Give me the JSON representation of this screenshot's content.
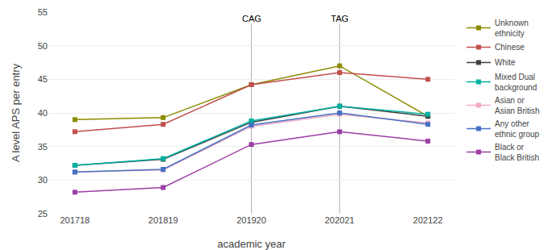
{
  "chart_data": {
    "type": "line",
    "xlabel": "academic year",
    "ylabel": "A level APS per entry",
    "categories": [
      "201718",
      "201819",
      "201920",
      "202021",
      "202122"
    ],
    "series": [
      {
        "name": "Unknown\nethnicity",
        "color": "#8b8b00",
        "marker": "square",
        "values": [
          39.0,
          39.3,
          44.2,
          47.0,
          39.5
        ]
      },
      {
        "name": "Chinese",
        "color": "#c0504d",
        "marker": "square",
        "values": [
          37.2,
          38.3,
          44.2,
          46.0,
          45.0
        ]
      },
      {
        "name": "White",
        "color": "#404040",
        "marker": "square",
        "values": [
          32.2,
          33.1,
          38.6,
          41.0,
          39.5
        ]
      },
      {
        "name": "Mixed Dual\nbackground",
        "color": "#00b0a0",
        "marker": "square",
        "values": [
          32.2,
          33.2,
          38.8,
          41.0,
          39.8
        ]
      },
      {
        "name": "Asian or\nAsian British",
        "color": "#f4a9c4",
        "marker": "square",
        "values": [
          31.2,
          31.5,
          38.0,
          39.8,
          38.5
        ]
      },
      {
        "name": "Any other\nethnic group",
        "color": "#4472c4",
        "marker": "square",
        "values": [
          31.2,
          31.6,
          38.2,
          40.0,
          38.3
        ]
      },
      {
        "name": "Black or\nBlack British",
        "color": "#9b3fa5",
        "marker": "square",
        "values": [
          28.2,
          28.9,
          35.3,
          37.2,
          35.8
        ]
      }
    ],
    "annotations": [
      {
        "text": "CAG",
        "x": "201920"
      },
      {
        "text": "TAG",
        "x": "202021"
      }
    ],
    "ylim": [
      25,
      55
    ],
    "yticks": [
      25,
      30,
      35,
      40,
      45,
      50,
      55
    ],
    "grid": true,
    "legend": "right"
  }
}
